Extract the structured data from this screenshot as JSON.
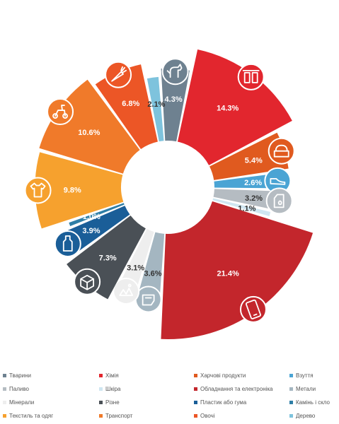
{
  "chart_data": {
    "type": "pie",
    "donut": true,
    "slices": [
      {
        "label": "Тварини",
        "value": 4.3,
        "display": "4.3%",
        "color": "#6e8190",
        "icon": "dog-icon"
      },
      {
        "label": "Хімія",
        "value": 14.3,
        "display": "14.3%",
        "color": "#e2262e",
        "icon": "chemicals-icon"
      },
      {
        "label": "Харчові продукти",
        "value": 5.4,
        "display": "5.4%",
        "color": "#e05a1f",
        "icon": "food-icon"
      },
      {
        "label": "Взуття",
        "value": 2.6,
        "display": "2.6%",
        "color": "#4aa4d4",
        "icon": "shoe-icon"
      },
      {
        "label": "Паливо",
        "value": 3.2,
        "display": "3.2%",
        "color": "#b5bcc2",
        "icon": "fuel-canister-icon"
      },
      {
        "label": "Шкіра",
        "value": 1.1,
        "display": "1.1%",
        "color": "#cfe6f1",
        "icon": ""
      },
      {
        "label": "Обладнання та електроніка",
        "value": 21.4,
        "display": "21.4%",
        "color": "#c3262c",
        "icon": "smartphone-icon"
      },
      {
        "label": "Метали",
        "value": 3.6,
        "display": "3.6%",
        "color": "#a4b6c1",
        "icon": "metal-icon"
      },
      {
        "label": "Мінерали",
        "value": 3.1,
        "display": "3.1%",
        "color": "#eeeeee",
        "icon": "minerals-icon"
      },
      {
        "label": "Різне",
        "value": 7.3,
        "display": "7.3%",
        "color": "#4a5056",
        "icon": "box-icon"
      },
      {
        "label": "Пластик або гума",
        "value": 3.9,
        "display": "3.9%",
        "color": "#1a5e98",
        "icon": "bottle-icon"
      },
      {
        "label": "Камінь і скло",
        "value": 1.0,
        "display": "1.0%",
        "color": "#2e7ea6",
        "icon": ""
      },
      {
        "label": "Текстиль та одяг",
        "value": 9.8,
        "display": "9.8%",
        "color": "#f6a12e",
        "icon": "clothing-icon"
      },
      {
        "label": "Транспорт",
        "value": 10.6,
        "display": "10.6%",
        "color": "#f07a2a",
        "icon": "scooter-icon"
      },
      {
        "label": "Овочі",
        "value": 6.8,
        "display": "6.8%",
        "color": "#ec5626",
        "icon": "carrot-icon"
      },
      {
        "label": "Дерево",
        "value": 2.1,
        "display": "2.1%",
        "color": "#7ec3dd",
        "icon": ""
      }
    ],
    "legend": {
      "position": "bottom",
      "entries": [
        {
          "label": "Тварини",
          "color": "#6e8190"
        },
        {
          "label": "Хімія",
          "color": "#e2262e"
        },
        {
          "label": "Харчові продукти",
          "color": "#e05a1f"
        },
        {
          "label": "Взуття",
          "color": "#4aa4d4"
        },
        {
          "label": "Паливо",
          "color": "#b5bcc2"
        },
        {
          "label": "Шкіра",
          "color": "#cfe6f1"
        },
        {
          "label": "Обладнання та електроніка",
          "color": "#c3262c"
        },
        {
          "label": "Метали",
          "color": "#a4b6c1"
        },
        {
          "label": "Мінерали",
          "color": "#eeeeee"
        },
        {
          "label": "Різне",
          "color": "#4a5056"
        },
        {
          "label": "Пластик або гума",
          "color": "#1a5e98"
        },
        {
          "label": "Камінь і скло",
          "color": "#2e7ea6"
        },
        {
          "label": "Текстиль та одяг",
          "color": "#f6a12e"
        },
        {
          "label": "Транспорт",
          "color": "#f07a2a"
        },
        {
          "label": "Овочі",
          "color": "#ec5626"
        },
        {
          "label": "Дерево",
          "color": "#7ec3dd"
        }
      ]
    }
  }
}
